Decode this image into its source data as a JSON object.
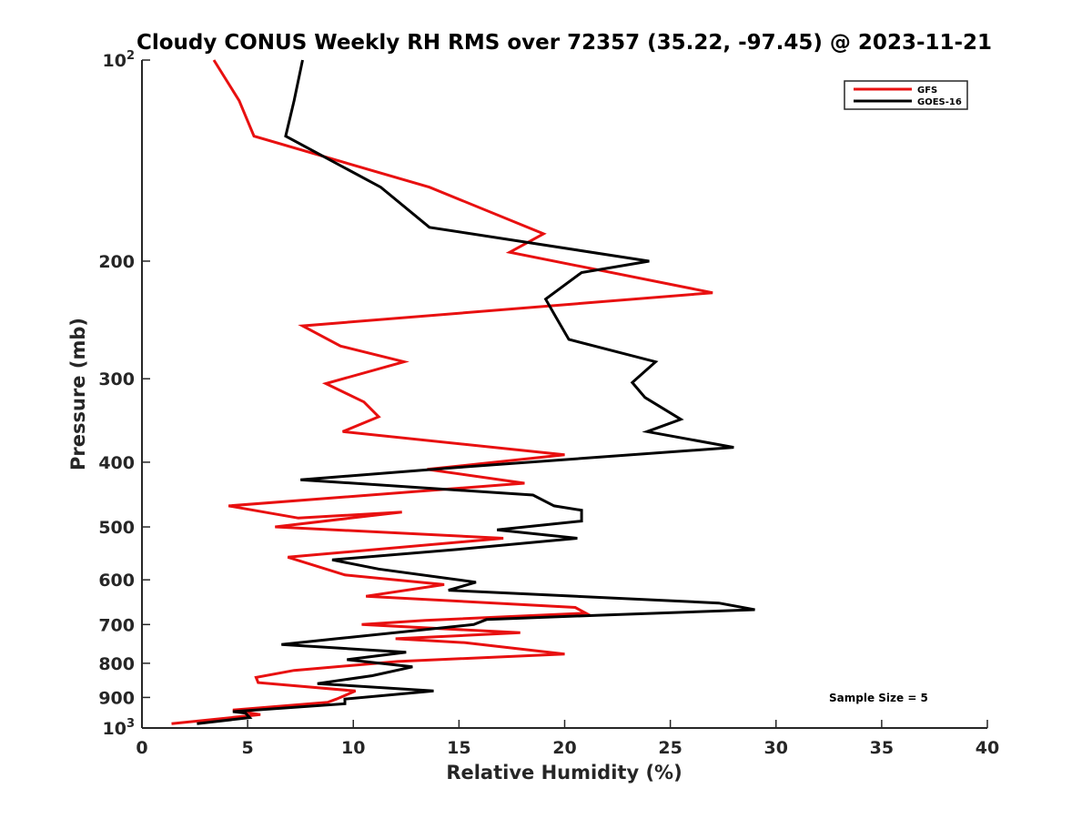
{
  "chart_data": {
    "type": "line",
    "title": "Cloudy CONUS Weekly RH RMS over 72357 (35.22, -97.45) @ 2023-11-21",
    "xlabel": "Relative Humidity (%)",
    "ylabel": "Pressure (mb)",
    "xlim": [
      0,
      40
    ],
    "ylim": [
      100,
      1000
    ],
    "y_scale": "log",
    "y_reversed": true,
    "grid": false,
    "legend_position": "top-right",
    "x_ticks": [
      0,
      5,
      10,
      15,
      20,
      25,
      30,
      35,
      40
    ],
    "x_tick_labels": [
      "0",
      "5",
      "10",
      "15",
      "20",
      "25",
      "30",
      "35",
      "40"
    ],
    "y_ticks": [
      100,
      200,
      300,
      400,
      500,
      600,
      700,
      800,
      900,
      1000
    ],
    "y_tick_labels": [
      {
        "base": "10",
        "exp": "2"
      },
      {
        "base": "200",
        "exp": ""
      },
      {
        "base": "300",
        "exp": ""
      },
      {
        "base": "400",
        "exp": ""
      },
      {
        "base": "500",
        "exp": ""
      },
      {
        "base": "600",
        "exp": ""
      },
      {
        "base": "700",
        "exp": ""
      },
      {
        "base": "800",
        "exp": ""
      },
      {
        "base": "900",
        "exp": ""
      },
      {
        "base": "10",
        "exp": "3"
      }
    ],
    "annotation": "Sample Size = 5",
    "series": [
      {
        "name": "GFS",
        "color": "#e81010",
        "points": [
          [
            3.4,
            100
          ],
          [
            4.6,
            115
          ],
          [
            5.3,
            130
          ],
          [
            13.6,
            155
          ],
          [
            19.0,
            182
          ],
          [
            17.4,
            194
          ],
          [
            27.0,
            223
          ],
          [
            7.6,
            250
          ],
          [
            9.4,
            268
          ],
          [
            12.4,
            283
          ],
          [
            8.7,
            305
          ],
          [
            10.5,
            325
          ],
          [
            11.2,
            342
          ],
          [
            9.5,
            360
          ],
          [
            20.0,
            390
          ],
          [
            13.5,
            410
          ],
          [
            18.1,
            430
          ],
          [
            4.1,
            465
          ],
          [
            7.4,
            485
          ],
          [
            12.3,
            475
          ],
          [
            6.3,
            500
          ],
          [
            17.1,
            520
          ],
          [
            6.9,
            555
          ],
          [
            9.6,
            590
          ],
          [
            14.3,
            610
          ],
          [
            10.6,
            635
          ],
          [
            20.5,
            660
          ],
          [
            21.0,
            673
          ],
          [
            13.4,
            690
          ],
          [
            10.4,
            700
          ],
          [
            17.9,
            720
          ],
          [
            12.0,
            735
          ],
          [
            15.3,
            745
          ],
          [
            20.0,
            775
          ],
          [
            12.1,
            795
          ],
          [
            7.2,
            820
          ],
          [
            5.4,
            840
          ],
          [
            5.5,
            855
          ],
          [
            10.1,
            880
          ],
          [
            9.2,
            905
          ],
          [
            8.8,
            915
          ],
          [
            4.3,
            940
          ],
          [
            5.6,
            955
          ],
          [
            1.4,
            985
          ]
        ]
      },
      {
        "name": "GOES-16",
        "color": "#000000",
        "points": [
          [
            7.6,
            100
          ],
          [
            7.2,
            115
          ],
          [
            6.8,
            130
          ],
          [
            11.3,
            155
          ],
          [
            13.6,
            178
          ],
          [
            24.0,
            200
          ],
          [
            20.8,
            208
          ],
          [
            19.1,
            228
          ],
          [
            19.6,
            243
          ],
          [
            20.2,
            262
          ],
          [
            24.3,
            283
          ],
          [
            23.2,
            304
          ],
          [
            23.8,
            320
          ],
          [
            25.5,
            345
          ],
          [
            23.9,
            360
          ],
          [
            28.0,
            380
          ],
          [
            14.6,
            408
          ],
          [
            7.5,
            425
          ],
          [
            18.5,
            448
          ],
          [
            19.5,
            465
          ],
          [
            20.8,
            472
          ],
          [
            20.8,
            490
          ],
          [
            16.8,
            505
          ],
          [
            20.6,
            520
          ],
          [
            15.0,
            540
          ],
          [
            9.0,
            560
          ],
          [
            11.2,
            578
          ],
          [
            15.8,
            605
          ],
          [
            14.5,
            622
          ],
          [
            27.3,
            650
          ],
          [
            29.0,
            665
          ],
          [
            21.6,
            678
          ],
          [
            16.3,
            688
          ],
          [
            15.7,
            700
          ],
          [
            9.2,
            735
          ],
          [
            6.6,
            750
          ],
          [
            12.5,
            770
          ],
          [
            9.7,
            790
          ],
          [
            12.8,
            810
          ],
          [
            10.9,
            835
          ],
          [
            8.3,
            858
          ],
          [
            13.8,
            880
          ],
          [
            9.6,
            905
          ],
          [
            9.6,
            920
          ],
          [
            4.3,
            945
          ],
          [
            4.9,
            950
          ],
          [
            5.1,
            965
          ],
          [
            2.6,
            985
          ]
        ]
      }
    ]
  }
}
